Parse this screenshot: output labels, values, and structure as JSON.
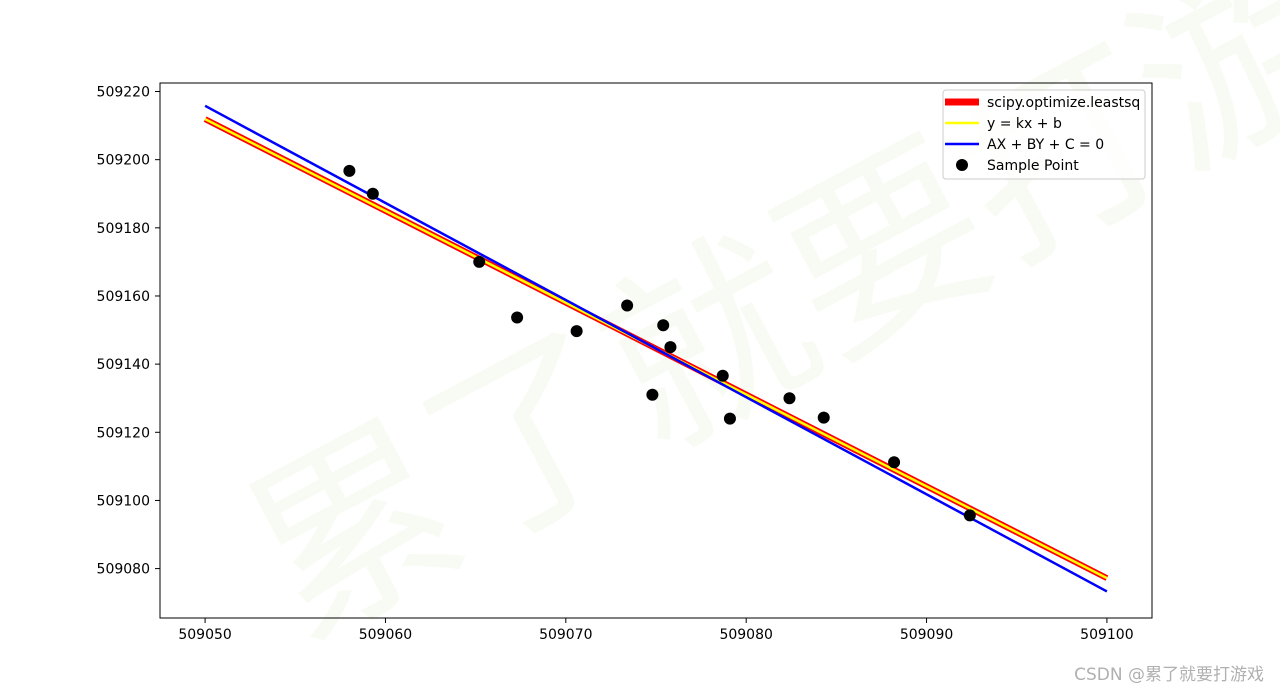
{
  "chart_data": {
    "type": "scatter",
    "xlim": [
      509047.5,
      509102.5
    ],
    "ylim": [
      509065.5,
      509222.5
    ],
    "x_ticks": [
      509050,
      509060,
      509070,
      509080,
      509090,
      509100
    ],
    "y_ticks": [
      509080,
      509100,
      509120,
      509140,
      509160,
      509180,
      509200,
      509220
    ],
    "grid": false,
    "legend_position": "top-right",
    "series": [
      {
        "name": "scipy.optimize.leastsq",
        "kind": "line",
        "color": "#ff0000",
        "x": [
          509050,
          509100
        ],
        "y": [
          509211.9,
          509077.2
        ]
      },
      {
        "name": "y = kx + b",
        "kind": "line",
        "color": "#ffff00",
        "x": [
          509050,
          509100
        ],
        "y": [
          509211.9,
          509077.2
        ]
      },
      {
        "name": "AX + BY + C = 0",
        "kind": "line",
        "color": "#0000ff",
        "x": [
          509050,
          509100
        ],
        "y": [
          509215.8,
          509073.3
        ]
      },
      {
        "name": "Sample Point",
        "kind": "scatter",
        "color": "#000000",
        "x": [
          509058.0,
          509059.3,
          509065.2,
          509067.3,
          509070.6,
          509073.4,
          509074.8,
          509075.4,
          509075.8,
          509078.7,
          509079.1,
          509082.4,
          509084.3,
          509088.2,
          509092.4
        ],
        "y": [
          509196.7,
          509190.0,
          509170.0,
          509153.7,
          509149.7,
          509157.2,
          509131.0,
          509151.4,
          509145.0,
          509136.6,
          509124.0,
          509130.0,
          509124.3,
          509111.2,
          509095.6
        ]
      }
    ]
  },
  "watermark": "累了就要打游戏",
  "credit": "CSDN @累了就要打游戏"
}
